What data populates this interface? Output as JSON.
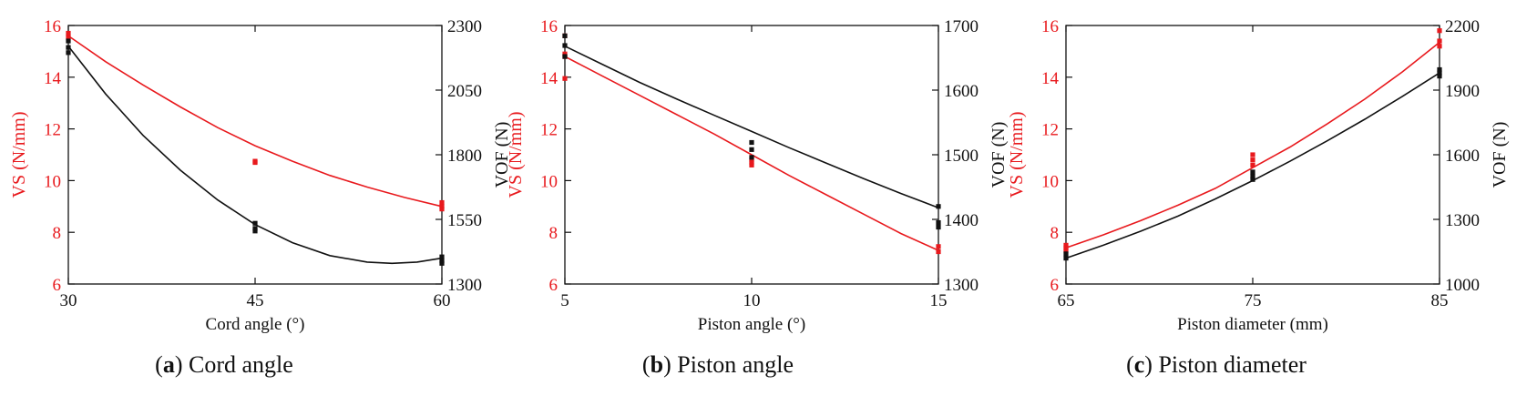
{
  "chart_data": [
    {
      "type": "line",
      "caption_letter": "a",
      "caption_text": "Cord angle",
      "xlabel": "Cord angle (°)",
      "ylabel": "VS (N/mm)",
      "y2label": "VOF (N)",
      "xlim": [
        30,
        60
      ],
      "xticks": [
        30,
        45,
        60
      ],
      "ylim": [
        6,
        16
      ],
      "yticks": [
        6,
        8,
        10,
        12,
        14,
        16
      ],
      "y2lim": [
        1300,
        2300
      ],
      "y2ticks": [
        1300,
        1550,
        1800,
        2050,
        2300
      ],
      "series": [
        {
          "axis": "left",
          "color": "#e8191d",
          "fit": [
            [
              30,
              15.6
            ],
            [
              33,
              14.6
            ],
            [
              36,
              13.7
            ],
            [
              39,
              12.85
            ],
            [
              42,
              12.05
            ],
            [
              45,
              11.35
            ],
            [
              48,
              10.75
            ],
            [
              51,
              10.2
            ],
            [
              54,
              9.75
            ],
            [
              57,
              9.35
            ],
            [
              60,
              9.0
            ]
          ],
          "points": [
            [
              30,
              15.7
            ],
            [
              30,
              15.55
            ],
            [
              45,
              10.75
            ],
            [
              45,
              10.7
            ],
            [
              60,
              9.15
            ],
            [
              60,
              9.0
            ],
            [
              60,
              8.9
            ]
          ]
        },
        {
          "axis": "right",
          "color": "#111111",
          "fit": [
            [
              30,
              2220
            ],
            [
              33,
              2035
            ],
            [
              36,
              1875
            ],
            [
              39,
              1740
            ],
            [
              42,
              1625
            ],
            [
              45,
              1530
            ],
            [
              48,
              1460
            ],
            [
              51,
              1410
            ],
            [
              54,
              1385
            ],
            [
              56,
              1380
            ],
            [
              58,
              1385
            ],
            [
              60,
              1400
            ]
          ],
          "points": [
            [
              30,
              2240
            ],
            [
              30,
              2215
            ],
            [
              30,
              2195
            ],
            [
              45,
              1535
            ],
            [
              45,
              1515
            ],
            [
              45,
              1505
            ],
            [
              60,
              1405
            ],
            [
              60,
              1390
            ],
            [
              60,
              1380
            ]
          ]
        }
      ]
    },
    {
      "type": "line",
      "caption_letter": "b",
      "caption_text": "Piston angle",
      "xlabel": "Piston angle (°)",
      "ylabel": "VS (N/mm)",
      "y2label": "VOF (N)",
      "xlim": [
        5,
        15
      ],
      "xticks": [
        5,
        10,
        15
      ],
      "ylim": [
        6,
        16
      ],
      "yticks": [
        6,
        8,
        10,
        12,
        14,
        16
      ],
      "y2lim": [
        1300,
        1700
      ],
      "y2ticks": [
        1300,
        1400,
        1500,
        1600,
        1700
      ],
      "series": [
        {
          "axis": "left",
          "color": "#e8191d",
          "fit": [
            [
              5,
              14.8
            ],
            [
              6,
              14.05
            ],
            [
              7,
              13.3
            ],
            [
              8,
              12.55
            ],
            [
              9,
              11.8
            ],
            [
              10,
              11.0
            ],
            [
              11,
              10.2
            ],
            [
              12,
              9.45
            ],
            [
              13,
              8.7
            ],
            [
              14,
              7.95
            ],
            [
              15,
              7.3
            ]
          ],
          "points": [
            [
              5,
              15.6
            ],
            [
              5,
              14.9
            ],
            [
              5,
              14.8
            ],
            [
              5,
              13.95
            ],
            [
              10,
              10.8
            ],
            [
              10,
              10.7
            ],
            [
              10,
              10.6
            ],
            [
              15,
              7.45
            ],
            [
              15,
              7.25
            ]
          ]
        },
        {
          "axis": "right",
          "color": "#111111",
          "fit": [
            [
              5,
              1668
            ],
            [
              6,
              1640
            ],
            [
              7,
              1612
            ],
            [
              8,
              1586
            ],
            [
              9,
              1561
            ],
            [
              10,
              1536
            ],
            [
              11,
              1511
            ],
            [
              12,
              1487
            ],
            [
              13,
              1463
            ],
            [
              14,
              1440
            ],
            [
              15,
              1418
            ]
          ],
          "points": [
            [
              5,
              1684
            ],
            [
              5,
              1669
            ],
            [
              5,
              1652
            ],
            [
              10,
              1519
            ],
            [
              10,
              1508
            ],
            [
              10,
              1496
            ],
            [
              15,
              1420
            ],
            [
              15,
              1395
            ],
            [
              15,
              1388
            ]
          ]
        }
      ]
    },
    {
      "type": "line",
      "caption_letter": "c",
      "caption_text": "Piston diameter",
      "xlabel": "Piston diameter (mm)",
      "ylabel": "VS (N/mm)",
      "y2label": "VOF (N)",
      "xlim": [
        65,
        85
      ],
      "xticks": [
        65,
        75,
        85
      ],
      "ylim": [
        6,
        16
      ],
      "yticks": [
        6,
        8,
        10,
        12,
        14,
        16
      ],
      "y2lim": [
        1000,
        2200
      ],
      "y2ticks": [
        1000,
        1300,
        1600,
        1900,
        2200
      ],
      "series": [
        {
          "axis": "left",
          "color": "#e8191d",
          "fit": [
            [
              65,
              7.4
            ],
            [
              67,
              7.9
            ],
            [
              69,
              8.45
            ],
            [
              71,
              9.05
            ],
            [
              73,
              9.7
            ],
            [
              75,
              10.5
            ],
            [
              77,
              11.3
            ],
            [
              79,
              12.2
            ],
            [
              81,
              13.15
            ],
            [
              83,
              14.2
            ],
            [
              85,
              15.35
            ]
          ],
          "points": [
            [
              65,
              7.5
            ],
            [
              65,
              7.4
            ],
            [
              65,
              7.3
            ],
            [
              75,
              11.0
            ],
            [
              75,
              10.8
            ],
            [
              75,
              10.6
            ],
            [
              85,
              15.8
            ],
            [
              85,
              15.4
            ],
            [
              85,
              15.2
            ]
          ]
        },
        {
          "axis": "right",
          "color": "#111111",
          "fit": [
            [
              65,
              1120
            ],
            [
              67,
              1180
            ],
            [
              69,
              1245
            ],
            [
              71,
              1315
            ],
            [
              73,
              1395
            ],
            [
              75,
              1480
            ],
            [
              77,
              1570
            ],
            [
              79,
              1665
            ],
            [
              81,
              1765
            ],
            [
              83,
              1870
            ],
            [
              85,
              1980
            ]
          ],
          "points": [
            [
              65,
              1140
            ],
            [
              65,
              1120
            ],
            [
              75,
              1520
            ],
            [
              75,
              1500
            ],
            [
              75,
              1485
            ],
            [
              85,
              1995
            ],
            [
              85,
              1980
            ],
            [
              85,
              1965
            ]
          ]
        }
      ]
    }
  ]
}
